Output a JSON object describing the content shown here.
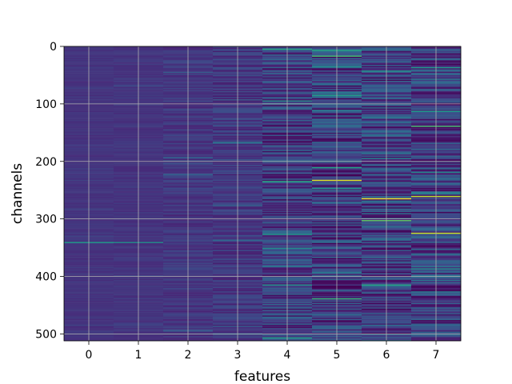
{
  "chart_data": {
    "type": "heatmap",
    "title": "",
    "xlabel": "features",
    "ylabel": "channels",
    "xlim": [
      -0.5,
      7.5
    ],
    "ylim": [
      512,
      0
    ],
    "y_inverted": true,
    "grid": true,
    "x_ticks": [
      0,
      1,
      2,
      3,
      4,
      5,
      6,
      7
    ],
    "y_ticks": [
      0,
      100,
      200,
      300,
      400,
      500
    ],
    "columns": [
      0,
      1,
      2,
      3,
      4,
      5,
      6,
      7
    ],
    "n_rows": 512,
    "colormap": "viridis",
    "column_variance": [
      0.05,
      0.06,
      0.12,
      0.16,
      0.32,
      0.36,
      0.36,
      0.34
    ],
    "column_base": [
      0.15,
      0.15,
      0.16,
      0.16,
      0.18,
      0.18,
      0.18,
      0.18
    ],
    "highlights": [
      {
        "column": 0,
        "row": 341,
        "value": 0.55
      },
      {
        "column": 1,
        "row": 341,
        "value": 0.5
      },
      {
        "column": 4,
        "row": 266,
        "value": 0.0
      },
      {
        "column": 4,
        "row": 5,
        "value": 0.6
      },
      {
        "column": 5,
        "row": 16,
        "value": 0.7
      },
      {
        "column": 5,
        "row": 233,
        "value": 0.95
      },
      {
        "column": 5,
        "row": 279,
        "value": 0.02
      },
      {
        "column": 6,
        "row": 265,
        "value": 0.98
      },
      {
        "column": 7,
        "row": 260,
        "value": 0.9
      },
      {
        "column": 7,
        "row": 325,
        "value": 0.92
      },
      {
        "column": 7,
        "row": 138,
        "value": 0.7
      }
    ]
  }
}
